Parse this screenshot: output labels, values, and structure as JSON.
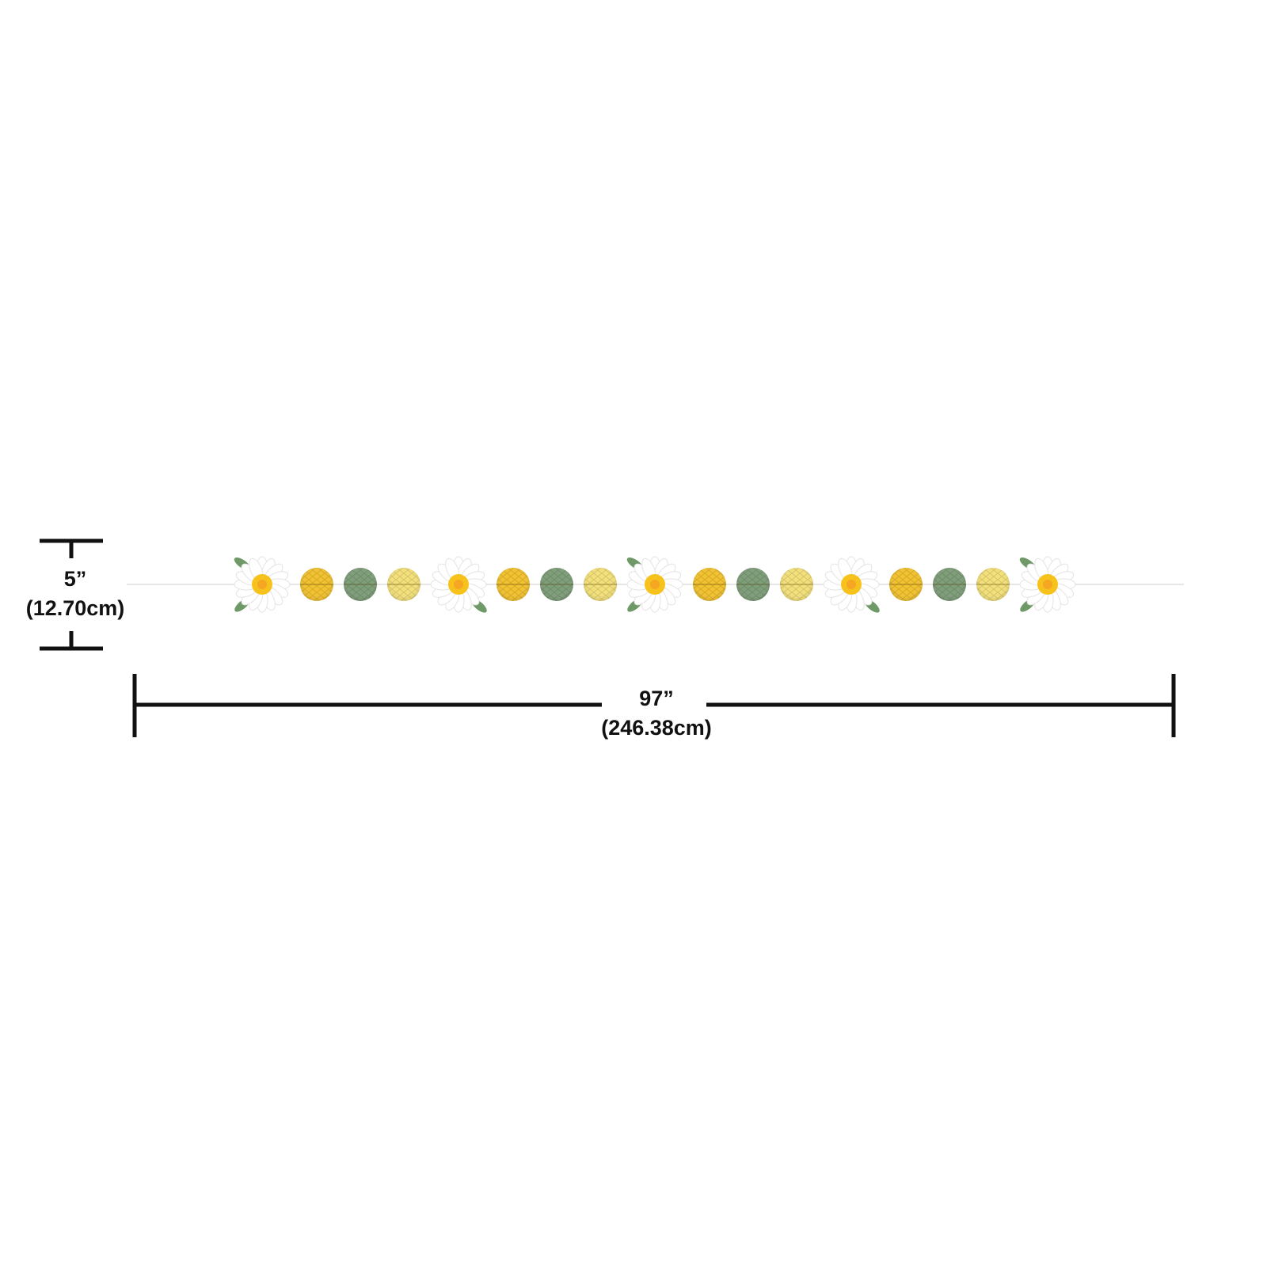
{
  "height_dimension": {
    "inches": "5”",
    "centimeters": "(12.70cm)"
  },
  "length_dimension": {
    "inches": "97”",
    "centimeters": "(246.38cm)"
  },
  "garland": {
    "sequence": [
      "daisy",
      "gold-ball",
      "green-ball",
      "pale-yellow-ball",
      "daisy",
      "gold-ball",
      "green-ball",
      "pale-yellow-ball",
      "daisy",
      "gold-ball",
      "green-ball",
      "pale-yellow-ball",
      "daisy",
      "gold-ball",
      "green-ball",
      "pale-yellow-ball",
      "daisy"
    ],
    "colors": {
      "gold": "#f2c230",
      "green": "#7f9e7a",
      "pale_yellow": "#f3e07a",
      "leaf": "#6f9a68",
      "daisy_center": "#f5a623",
      "daisy_petal": "#ffffff"
    }
  }
}
